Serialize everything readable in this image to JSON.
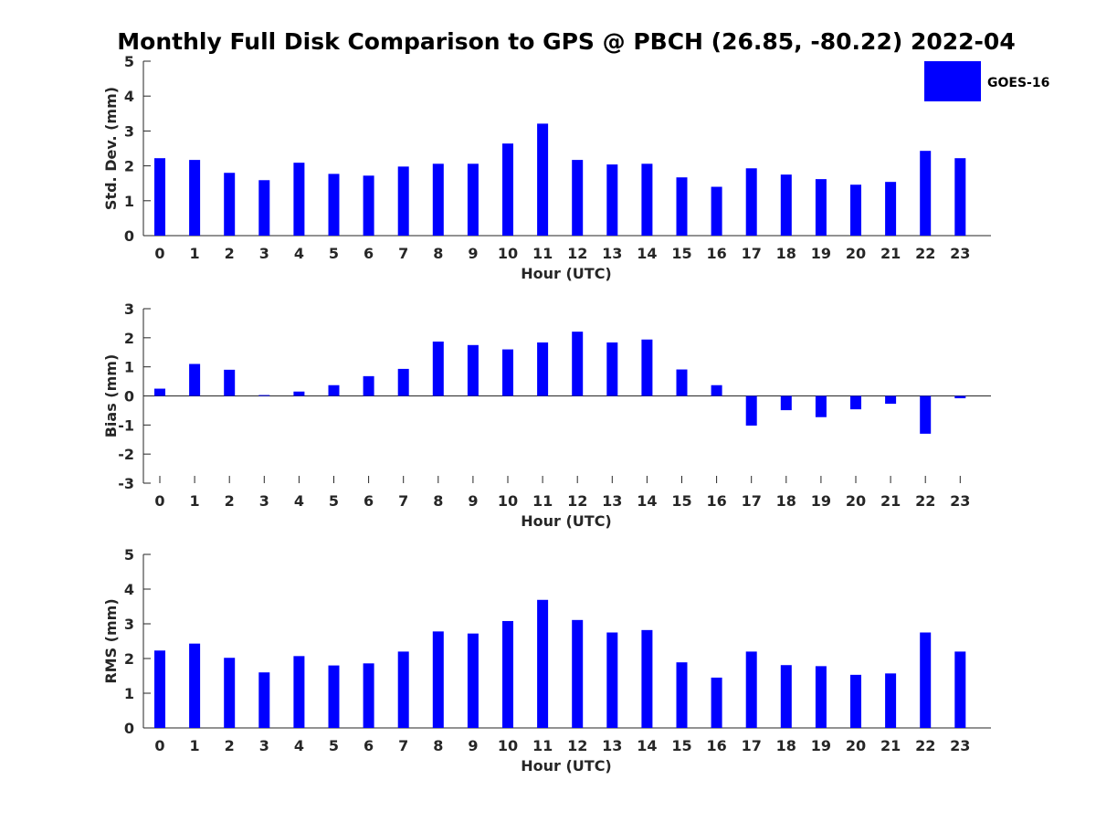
{
  "title": "Monthly Full Disk Comparison to GPS @ PBCH (26.85, -80.22) 2022-04",
  "legend": {
    "label": "GOES-16",
    "color": "#0000ff",
    "placement": "top-right"
  },
  "chart_data": [
    {
      "type": "bar",
      "xlabel": "Hour (UTC)",
      "ylabel": "Std. Dev. (mm)",
      "ylim": [
        0,
        5
      ],
      "yticks": [
        0,
        1,
        2,
        3,
        4,
        5
      ],
      "categories": [
        "0",
        "1",
        "2",
        "3",
        "4",
        "5",
        "6",
        "7",
        "8",
        "9",
        "10",
        "11",
        "12",
        "13",
        "14",
        "15",
        "16",
        "17",
        "18",
        "19",
        "20",
        "21",
        "22",
        "23"
      ],
      "series": [
        {
          "name": "GOES-16",
          "color": "#0000ff",
          "values": [
            2.22,
            2.17,
            1.8,
            1.59,
            2.09,
            1.77,
            1.72,
            1.98,
            2.06,
            2.06,
            2.64,
            3.21,
            2.17,
            2.04,
            2.06,
            1.67,
            1.4,
            1.93,
            1.75,
            1.62,
            1.46,
            1.54,
            2.43,
            2.22
          ]
        }
      ]
    },
    {
      "type": "bar",
      "xlabel": "Hour (UTC)",
      "ylabel": "Bias (mm)",
      "ylim": [
        -3,
        3
      ],
      "yticks": [
        -3,
        -2,
        -1,
        0,
        1,
        2,
        3
      ],
      "categories": [
        "0",
        "1",
        "2",
        "3",
        "4",
        "5",
        "6",
        "7",
        "8",
        "9",
        "10",
        "11",
        "12",
        "13",
        "14",
        "15",
        "16",
        "17",
        "18",
        "19",
        "20",
        "21",
        "22",
        "23"
      ],
      "series": [
        {
          "name": "GOES-16",
          "color": "#0000ff",
          "values": [
            0.25,
            1.1,
            0.9,
            0.03,
            0.15,
            0.37,
            0.68,
            0.93,
            1.87,
            1.75,
            1.6,
            1.84,
            2.21,
            1.84,
            1.94,
            0.91,
            0.37,
            -1.02,
            -0.49,
            -0.73,
            -0.46,
            -0.27,
            -1.3,
            -0.08
          ]
        }
      ]
    },
    {
      "type": "bar",
      "xlabel": "Hour (UTC)",
      "ylabel": "RMS (mm)",
      "ylim": [
        0,
        5
      ],
      "yticks": [
        0,
        1,
        2,
        3,
        4,
        5
      ],
      "categories": [
        "0",
        "1",
        "2",
        "3",
        "4",
        "5",
        "6",
        "7",
        "8",
        "9",
        "10",
        "11",
        "12",
        "13",
        "14",
        "15",
        "16",
        "17",
        "18",
        "19",
        "20",
        "21",
        "22",
        "23"
      ],
      "series": [
        {
          "name": "GOES-16",
          "color": "#0000ff",
          "values": [
            2.23,
            2.43,
            2.02,
            1.6,
            2.07,
            1.8,
            1.86,
            2.2,
            2.78,
            2.72,
            3.08,
            3.69,
            3.11,
            2.75,
            2.82,
            1.89,
            1.45,
            2.2,
            1.81,
            1.78,
            1.53,
            1.57,
            2.75,
            2.2
          ]
        }
      ]
    }
  ]
}
